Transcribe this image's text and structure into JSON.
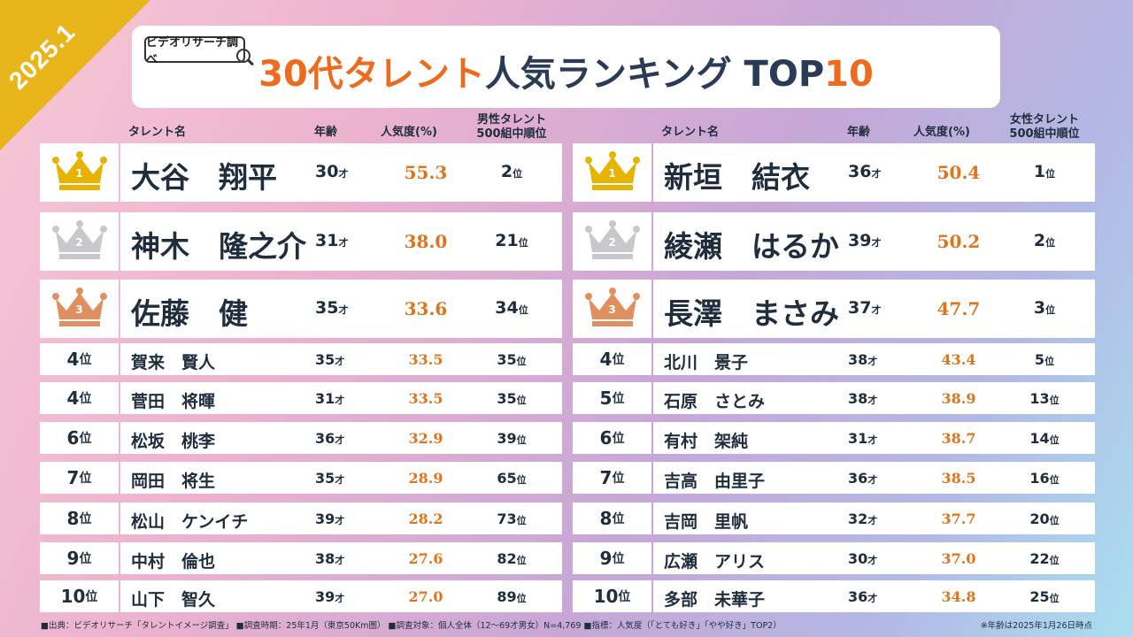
{
  "badge": "2025.1",
  "logo": "ビデオリサーチ調べ",
  "title": {
    "orange": "30代タレント",
    "dark": "人気ランキング TOP",
    "num": "10"
  },
  "male": {
    "headers": {
      "name": "タレント名",
      "age": "年齢",
      "pop": "人気度(%)",
      "rank_l1": "男性タレント",
      "rank_l2": "500組中順位"
    },
    "rows": [
      {
        "rank": "1",
        "name": "大谷　翔平",
        "age": "30",
        "pop": "55.3",
        "rk": "2"
      },
      {
        "rank": "2",
        "name": "神木　隆之介",
        "age": "31",
        "pop": "38.0",
        "rk": "21"
      },
      {
        "rank": "3",
        "name": "佐藤　健",
        "age": "35",
        "pop": "33.6",
        "rk": "34"
      },
      {
        "rank": "4",
        "name": "賀来　賢人",
        "age": "35",
        "pop": "33.5",
        "rk": "35"
      },
      {
        "rank": "4",
        "name": "菅田　将暉",
        "age": "31",
        "pop": "33.5",
        "rk": "35"
      },
      {
        "rank": "6",
        "name": "松坂　桃李",
        "age": "36",
        "pop": "32.9",
        "rk": "39"
      },
      {
        "rank": "7",
        "name": "岡田　将生",
        "age": "35",
        "pop": "28.9",
        "rk": "65"
      },
      {
        "rank": "8",
        "name": "松山　ケンイチ",
        "age": "39",
        "pop": "28.2",
        "rk": "73"
      },
      {
        "rank": "9",
        "name": "中村　倫也",
        "age": "38",
        "pop": "27.6",
        "rk": "82"
      },
      {
        "rank": "10",
        "name": "山下　智久",
        "age": "39",
        "pop": "27.0",
        "rk": "89"
      }
    ]
  },
  "female": {
    "headers": {
      "name": "タレント名",
      "age": "年齢",
      "pop": "人気度(%)",
      "rank_l1": "女性タレント",
      "rank_l2": "500組中順位"
    },
    "rows": [
      {
        "rank": "1",
        "name": "新垣　結衣",
        "age": "36",
        "pop": "50.4",
        "rk": "1"
      },
      {
        "rank": "2",
        "name": "綾瀬　はるか",
        "age": "39",
        "pop": "50.2",
        "rk": "2"
      },
      {
        "rank": "3",
        "name": "長澤　まさみ",
        "age": "37",
        "pop": "47.7",
        "rk": "3"
      },
      {
        "rank": "4",
        "name": "北川　景子",
        "age": "38",
        "pop": "43.4",
        "rk": "5"
      },
      {
        "rank": "5",
        "name": "石原　さとみ",
        "age": "38",
        "pop": "38.9",
        "rk": "13"
      },
      {
        "rank": "6",
        "name": "有村　架純",
        "age": "31",
        "pop": "38.7",
        "rk": "14"
      },
      {
        "rank": "7",
        "name": "吉高　由里子",
        "age": "36",
        "pop": "38.5",
        "rk": "16"
      },
      {
        "rank": "8",
        "name": "吉岡　里帆",
        "age": "32",
        "pop": "37.7",
        "rk": "20"
      },
      {
        "rank": "9",
        "name": "広瀬　アリス",
        "age": "30",
        "pop": "37.0",
        "rk": "22"
      },
      {
        "rank": "10",
        "name": "多部　未華子",
        "age": "36",
        "pop": "34.8",
        "rk": "25"
      }
    ]
  },
  "units": {
    "age": "才",
    "rank": "位"
  },
  "crown_colors": [
    "#e6b400",
    "#c8c8cc",
    "#e09060"
  ],
  "footer": "■出典：ビデオリサーチ「タレントイメージ調査」 ■調査時期：25年1月（東京50Km圏） ■調査対象：個人全体（12～69才男女）N=4,769 ■指標：人気度（「とても好き」「やや好き」TOP2）",
  "footer_note": "※年齢は2025年1月26日時点"
}
